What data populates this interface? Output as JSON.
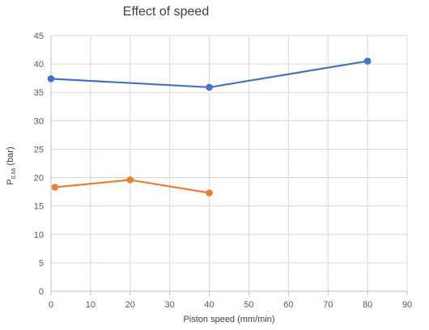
{
  "chart_data": {
    "type": "line",
    "title": "Effect of speed",
    "xlabel": "Piston speed (mm/min)",
    "ylabel_main": "P",
    "ylabel_sub": "0.66",
    "ylabel_tail": " (bar)",
    "xlim": [
      0,
      90
    ],
    "ylim": [
      0,
      45
    ],
    "xticks": [
      0,
      10,
      20,
      30,
      40,
      50,
      60,
      70,
      80,
      90
    ],
    "yticks": [
      0,
      5,
      10,
      15,
      20,
      25,
      30,
      35,
      40,
      45
    ],
    "grid": true,
    "legend": "none",
    "series": [
      {
        "color": "#4472c4",
        "x": [
          0,
          40,
          80
        ],
        "y": [
          37.4,
          35.9,
          40.5
        ]
      },
      {
        "color": "#ed7d31",
        "x": [
          1,
          20,
          40
        ],
        "y": [
          18.3,
          19.6,
          17.3
        ]
      }
    ]
  }
}
